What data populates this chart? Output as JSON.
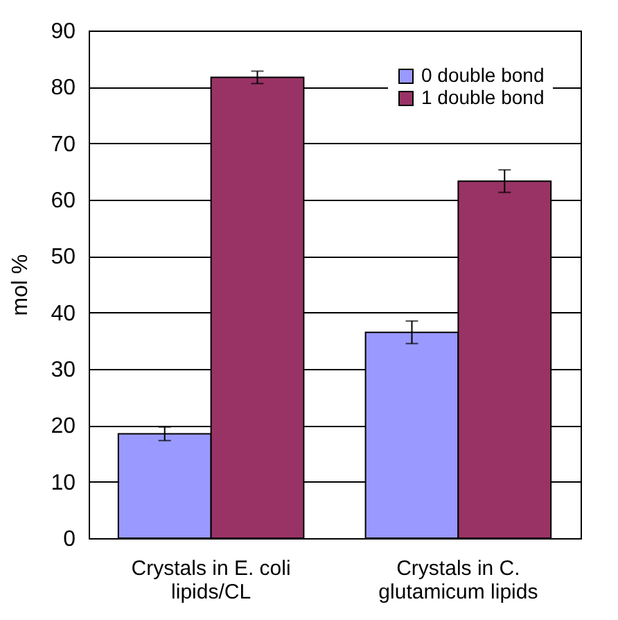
{
  "chart_data": {
    "type": "bar",
    "ylabel": "mol %",
    "categories": [
      "Crystals in E. coli lipids/CL",
      "Crystals in C. glutamicum lipids"
    ],
    "series": [
      {
        "name": "0 double bond",
        "color": "#9999ff",
        "values": [
          18.5,
          36.5
        ],
        "errors": [
          1.2,
          2
        ]
      },
      {
        "name": "1 double bond",
        "color": "#993366",
        "values": [
          81.7,
          63.3
        ],
        "errors": [
          1.1,
          2
        ]
      }
    ],
    "ylim": [
      0,
      90
    ],
    "yticks": [
      0,
      10,
      20,
      30,
      40,
      50,
      60,
      70,
      80,
      90
    ],
    "grid": "y",
    "legend": "top right"
  }
}
